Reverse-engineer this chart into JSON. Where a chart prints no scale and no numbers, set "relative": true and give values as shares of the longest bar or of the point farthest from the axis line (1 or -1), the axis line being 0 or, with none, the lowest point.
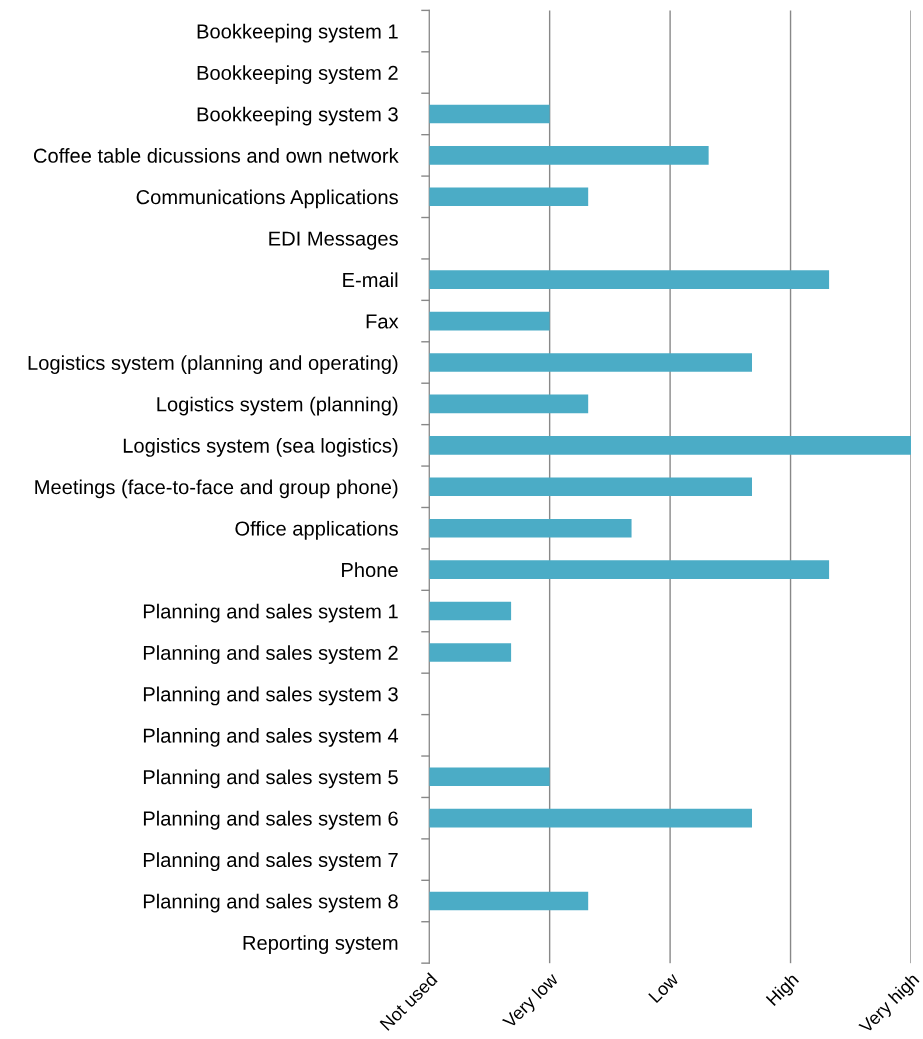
{
  "chart_data": {
    "type": "bar",
    "orientation": "horizontal",
    "relative": true,
    "categories": [
      "Bookkeeping system 1",
      "Bookkeeping system 2",
      "Bookkeeping system 3",
      "Coffee table dicussions and own network",
      "Communications Applications",
      "EDI Messages",
      "E-mail",
      "Fax",
      "Logistics system (planning and operating)",
      "Logistics system (planning)",
      "Logistics system (sea logistics)",
      "Meetings (face-to-face and group phone)",
      "Office applications",
      "Phone",
      "Planning and sales system 1",
      "Planning and sales system 2",
      "Planning and sales system 3",
      "Planning and sales system 4",
      "Planning and sales system 5",
      "Planning and sales system 6",
      "Planning and sales system 7",
      "Planning and sales system 8",
      "Reporting system"
    ],
    "values": [
      0,
      0,
      0.25,
      0.58,
      0.33,
      0,
      0.83,
      0.25,
      0.67,
      0.33,
      1,
      0.67,
      0.42,
      0.83,
      0.17,
      0.17,
      0,
      0,
      0.25,
      0.67,
      0,
      0.33,
      0
    ],
    "color": "#4bacc6",
    "annotations": [
      "Not used",
      "Very low",
      "Low",
      "High",
      "Very high"
    ],
    "grid": "x"
  }
}
